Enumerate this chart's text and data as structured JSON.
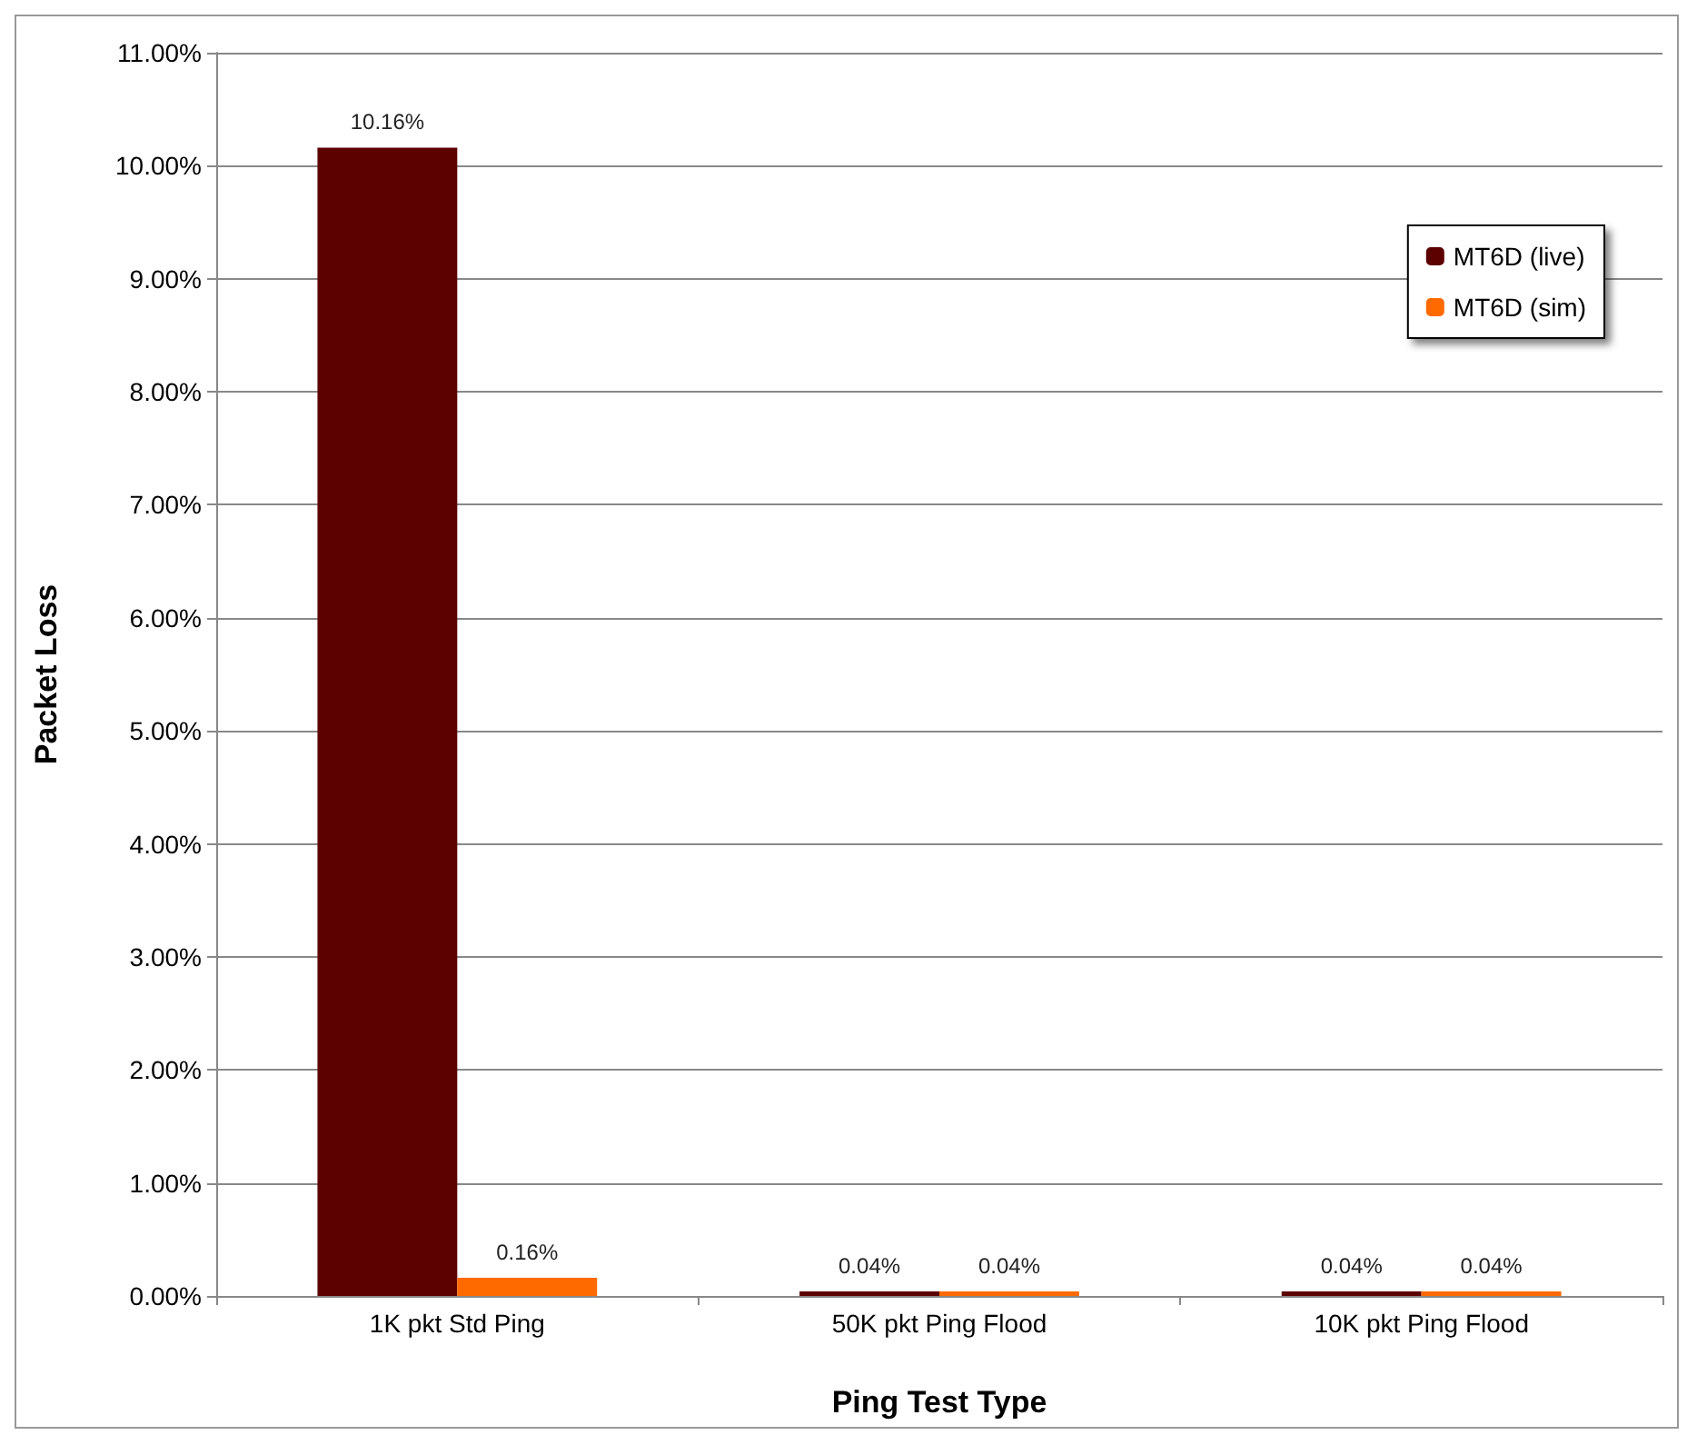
{
  "chart_data": {
    "type": "bar",
    "xlabel": "Ping Test Type",
    "ylabel": "Packet Loss",
    "categories": [
      "1K pkt Std Ping",
      "50K pkt Ping Flood",
      "10K pkt Ping Flood"
    ],
    "series": [
      {
        "name": "MT6D (live)",
        "color": "#5c0000",
        "values": [
          10.16,
          0.04,
          0.04
        ],
        "value_labels": [
          "10.16%",
          "0.04%",
          "0.04%"
        ]
      },
      {
        "name": "MT6D (sim)",
        "color": "#ff6a00",
        "values": [
          0.16,
          0.04,
          0.04
        ],
        "value_labels": [
          "0.16%",
          "0.04%",
          "0.04%"
        ]
      }
    ],
    "ylim": [
      0,
      11
    ],
    "yticks": [
      {
        "value": 0,
        "label": "0.00%"
      },
      {
        "value": 1,
        "label": "1.00%"
      },
      {
        "value": 2,
        "label": "2.00%"
      },
      {
        "value": 3,
        "label": "3.00%"
      },
      {
        "value": 4,
        "label": "4.00%"
      },
      {
        "value": 5,
        "label": "5.00%"
      },
      {
        "value": 6,
        "label": "6.00%"
      },
      {
        "value": 7,
        "label": "7.00%"
      },
      {
        "value": 8,
        "label": "8.00%"
      },
      {
        "value": 9,
        "label": "9.00%"
      },
      {
        "value": 10,
        "label": "10.00%"
      },
      {
        "value": 11,
        "label": "11.00%"
      }
    ],
    "grid": "y",
    "legend": "top right"
  }
}
